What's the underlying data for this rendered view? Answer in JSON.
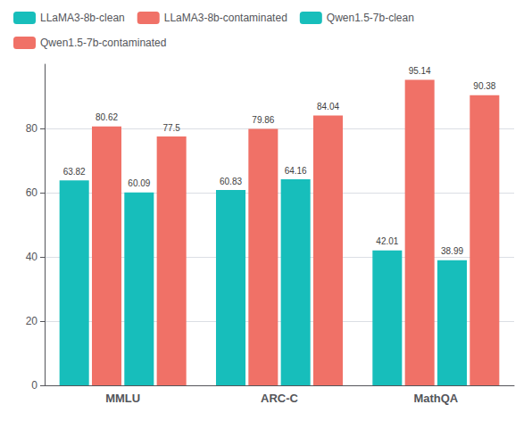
{
  "chart_data": {
    "type": "bar",
    "categories": [
      "MMLU",
      "ARC-C",
      "MathQA"
    ],
    "series": [
      {
        "name": "LLaMA3-8b-clean",
        "color": "#17BEBB",
        "values": [
          63.82,
          60.83,
          42.01
        ]
      },
      {
        "name": "LLaMA3-8b-contaminated",
        "color": "#F07167",
        "values": [
          80.62,
          79.86,
          95.14
        ]
      },
      {
        "name": "Qwen1.5-7b-clean",
        "color": "#17BEBB",
        "values": [
          60.09,
          64.16,
          38.99
        ]
      },
      {
        "name": "Qwen1.5-7b-contaminated",
        "color": "#F07167",
        "values": [
          77.5,
          84.04,
          90.38
        ]
      }
    ],
    "ylim": [
      0,
      100
    ],
    "yticks": [
      0,
      20,
      40,
      60,
      80
    ],
    "grid": true,
    "legend": "upper left",
    "data_labels": true
  }
}
